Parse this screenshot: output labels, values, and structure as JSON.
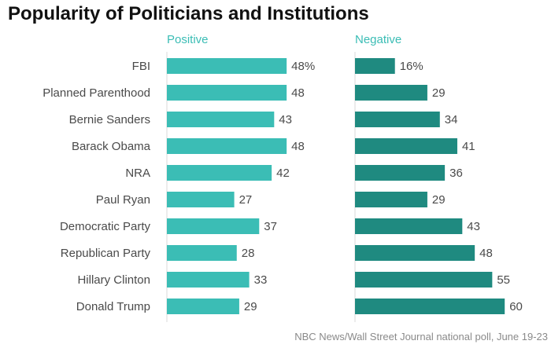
{
  "chart_data": {
    "type": "bar",
    "orientation": "horizontal",
    "title": "Popularity of Politicians and Institutions",
    "categories": [
      "FBI",
      "Planned Parenthood",
      "Bernie Sanders",
      "Barack Obama",
      "NRA",
      "Paul Ryan",
      "Democratic Party",
      "Republican Party",
      "Hillary Clinton",
      "Donald Trump"
    ],
    "series": [
      {
        "name": "Positive",
        "color": "#3bbdb5",
        "values": [
          48,
          48,
          43,
          48,
          42,
          27,
          37,
          28,
          33,
          29
        ],
        "value_labels": [
          "48%",
          "48",
          "43",
          "48",
          "42",
          "27",
          "37",
          "28",
          "33",
          "29"
        ]
      },
      {
        "name": "Negative",
        "color": "#1f8a80",
        "values": [
          16,
          29,
          34,
          41,
          36,
          29,
          43,
          48,
          55,
          60
        ],
        "value_labels": [
          "16%",
          "29",
          "34",
          "41",
          "36",
          "29",
          "43",
          "48",
          "55",
          "60"
        ]
      }
    ],
    "xlim": [
      0,
      60
    ],
    "grid": false,
    "legend": "panel-headings"
  },
  "source": "NBC News/Wall Street Journal national poll, June 19-23"
}
